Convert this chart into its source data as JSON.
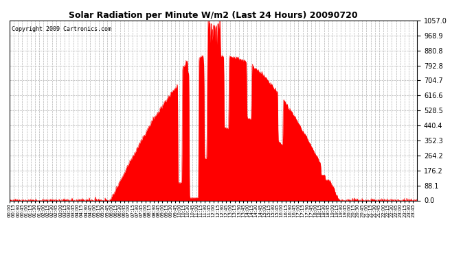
{
  "title": "Solar Radiation per Minute W/m2 (Last 24 Hours) 20090720",
  "copyright": "Copyright 2009 Cartronics.com",
  "y_max": 1057.0,
  "y_ticks": [
    0.0,
    88.1,
    176.2,
    264.2,
    352.3,
    440.4,
    528.5,
    616.6,
    704.7,
    792.8,
    880.8,
    968.9,
    1057.0
  ],
  "fill_color": "#FF0000",
  "line_color": "#FF0000",
  "bg_color": "#FFFFFF",
  "plot_bg_color": "#FFFFFF",
  "grid_color": "#AAAAAA",
  "dashed_line_color": "#FF0000",
  "total_minutes": 1440,
  "sunrise": 355,
  "sunset": 1165,
  "peak_minute": 710,
  "peak_value": 1057.0
}
